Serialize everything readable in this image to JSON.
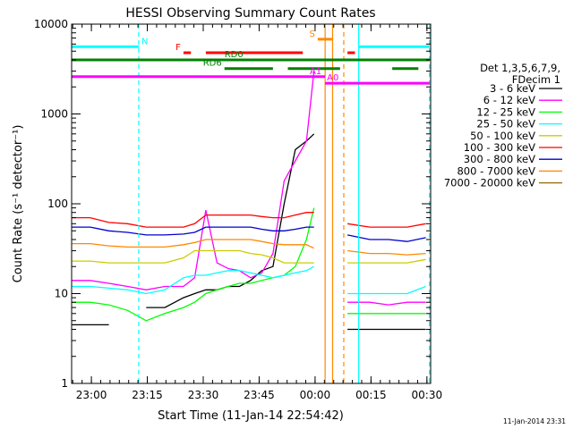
{
  "chart_data": {
    "type": "line",
    "title": "HESSI Observing Summary Count Rates",
    "xlabel": "Start Time (11-Jan-14 22:54:42)",
    "ylabel": "Count Rate (s⁻¹ detector⁻¹)",
    "yscale": "log",
    "ylim": [
      1,
      10000
    ],
    "xlim": [
      "22:54:42",
      "00:31:00"
    ],
    "x_ticks": [
      "23:00",
      "23:15",
      "23:30",
      "23:45",
      "00:00",
      "00:15",
      "00:30"
    ],
    "x_tick_minutes": [
      5.3,
      20.3,
      35.3,
      50.3,
      65.3,
      80.3,
      95.3
    ],
    "y_ticks": [
      {
        "label": "1",
        "value": 1
      },
      {
        "label": "10",
        "value": 10
      },
      {
        "label": "100",
        "value": 100
      },
      {
        "label": "1000",
        "value": 1000
      },
      {
        "label": "10000",
        "value": 10000
      }
    ],
    "grid": false,
    "legend": {
      "header1": "Det 1,3,5,6,7,9,",
      "header2": "FDecim 1",
      "placement": "right"
    },
    "x_minutes": [
      0,
      5,
      10,
      15,
      20,
      25,
      30,
      33,
      36,
      39,
      42,
      45,
      48,
      51,
      54,
      57,
      60,
      63,
      65,
      68,
      72,
      74,
      80,
      85,
      90,
      95,
      97
    ],
    "series": [
      {
        "name": "3 - 6 keV",
        "color": "#000000",
        "values": [
          4.5,
          4.5,
          4.5,
          null,
          7,
          7,
          9,
          10,
          11,
          11,
          12,
          12,
          14,
          18,
          20,
          100,
          400,
          500,
          600,
          null,
          null,
          4,
          4,
          4,
          4,
          4,
          null
        ]
      },
      {
        "name": "6 - 12 keV",
        "color": "#ff00ff",
        "values": [
          14,
          14,
          13,
          12,
          11,
          12,
          12,
          15,
          85,
          22,
          19,
          18,
          15,
          17,
          28,
          180,
          300,
          500,
          3000,
          null,
          null,
          8,
          8,
          7.5,
          8,
          8,
          null
        ]
      },
      {
        "name": "12 - 25 keV",
        "color": "#00ff00",
        "values": [
          8,
          8,
          7.5,
          6.5,
          5,
          6,
          7,
          8,
          10,
          11,
          12,
          13,
          13,
          14,
          15,
          16,
          20,
          40,
          90,
          null,
          null,
          6,
          6,
          6,
          6,
          6,
          null
        ]
      },
      {
        "name": "25 - 50 keV",
        "color": "#00ffff",
        "values": [
          12,
          12,
          11.5,
          11,
          10,
          11,
          15,
          16,
          16,
          17,
          18,
          18,
          17,
          16,
          15,
          16,
          17,
          18,
          20,
          null,
          null,
          10,
          10,
          10,
          10,
          12,
          null
        ]
      },
      {
        "name": "50 - 100 keV",
        "color": "#cccc00",
        "values": [
          23,
          23,
          22,
          22,
          22,
          22,
          25,
          30,
          30,
          30,
          30,
          30,
          28,
          27,
          25,
          22,
          22,
          22,
          22,
          null,
          null,
          22,
          22,
          22,
          22,
          24,
          null
        ]
      },
      {
        "name": "100 - 300 keV",
        "color": "#ff0000",
        "values": [
          70,
          70,
          62,
          60,
          55,
          55,
          55,
          60,
          75,
          75,
          75,
          75,
          75,
          72,
          70,
          70,
          75,
          80,
          80,
          null,
          null,
          60,
          55,
          55,
          55,
          60,
          null
        ]
      },
      {
        "name": "300 - 800 keV",
        "color": "#0000cc",
        "values": [
          55,
          55,
          50,
          48,
          45,
          45,
          46,
          48,
          55,
          55,
          55,
          55,
          55,
          52,
          50,
          50,
          52,
          55,
          55,
          null,
          null,
          45,
          40,
          40,
          38,
          42,
          null
        ]
      },
      {
        "name": "800 - 7000 keV",
        "color": "#ff8800",
        "values": [
          36,
          36,
          34,
          33,
          33,
          33,
          35,
          37,
          40,
          40,
          40,
          40,
          40,
          38,
          36,
          35,
          35,
          35,
          32,
          null,
          null,
          30,
          28,
          28,
          27,
          28,
          null
        ]
      },
      {
        "name": "7000 - 20000 keV",
        "color": "#996600",
        "values": [
          null,
          null,
          null,
          null,
          null,
          null,
          null,
          null,
          null,
          null,
          null,
          null,
          null,
          null,
          null,
          null,
          null,
          null,
          null,
          null,
          null,
          null,
          null,
          null,
          null,
          null,
          null
        ]
      }
    ],
    "flag_bars": [
      {
        "label": "N",
        "color": "#00ffff",
        "value": 5600,
        "segments": [
          [
            0,
            18
          ],
          [
            77,
            96
          ]
        ]
      },
      {
        "label": "S",
        "color": "#ff8800",
        "value": 6800,
        "segments": [
          [
            66,
            70
          ]
        ]
      },
      {
        "label": "F",
        "color": "#ff0000",
        "value": 4800,
        "segments": [
          [
            30,
            32
          ],
          [
            36,
            62
          ],
          [
            74,
            76
          ]
        ]
      },
      {
        "label": "RD0",
        "color": "#008000",
        "value": 4000,
        "segments": [
          [
            0,
            96
          ]
        ]
      },
      {
        "label": "RD6",
        "color": "#008000",
        "value": 3200,
        "segments": [
          [
            41,
            54
          ],
          [
            58,
            72
          ],
          [
            86,
            93
          ]
        ]
      },
      {
        "label": "A1",
        "color": "#ff00ff",
        "value": 2600,
        "segments": [
          [
            0,
            68
          ]
        ]
      },
      {
        "label": "A0",
        "color": "#ff00ff",
        "value": 2200,
        "segments": [
          [
            68,
            96
          ]
        ]
      }
    ],
    "vlines": [
      {
        "x": 18,
        "color": "#00ffff",
        "style": "dashed"
      },
      {
        "x": 68,
        "color": "#ff8800",
        "style": "solid"
      },
      {
        "x": 70,
        "color": "#ff8800",
        "style": "solid"
      },
      {
        "x": 73,
        "color": "#ff8800",
        "style": "dashed"
      },
      {
        "x": 77,
        "color": "#00ffff",
        "style": "solid"
      },
      {
        "x": 96,
        "color": "#00ffff",
        "style": "dashed"
      }
    ],
    "footer_timestamp": "11-Jan-2014 23:31"
  }
}
